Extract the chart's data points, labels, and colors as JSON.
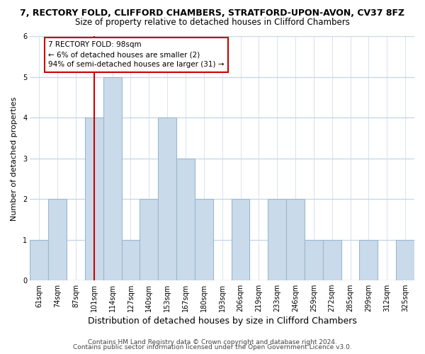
{
  "title_line1": "7, RECTORY FOLD, CLIFFORD CHAMBERS, STRATFORD-UPON-AVON, CV37 8FZ",
  "title_line2": "Size of property relative to detached houses in Clifford Chambers",
  "xlabel": "Distribution of detached houses by size in Clifford Chambers",
  "ylabel": "Number of detached properties",
  "footer_line1": "Contains HM Land Registry data © Crown copyright and database right 2024.",
  "footer_line2": "Contains public sector information licensed under the Open Government Licence v3.0.",
  "bin_labels": [
    "61sqm",
    "74sqm",
    "87sqm",
    "101sqm",
    "114sqm",
    "127sqm",
    "140sqm",
    "153sqm",
    "167sqm",
    "180sqm",
    "193sqm",
    "206sqm",
    "219sqm",
    "233sqm",
    "246sqm",
    "259sqm",
    "272sqm",
    "285sqm",
    "299sqm",
    "312sqm",
    "325sqm"
  ],
  "bar_heights": [
    1,
    2,
    0,
    4,
    5,
    1,
    2,
    4,
    3,
    2,
    0,
    2,
    0,
    2,
    2,
    1,
    1,
    0,
    1,
    0,
    1
  ],
  "bar_color": "#c9daea",
  "bar_edge_color": "#9bb8d0",
  "reference_line_index": 3,
  "reference_line_color": "#cc0000",
  "annotation_text_line1": "7 RECTORY FOLD: 98sqm",
  "annotation_text_line2": "← 6% of detached houses are smaller (2)",
  "annotation_text_line3": "94% of semi-detached houses are larger (31) →",
  "annotation_box_facecolor": "#ffffff",
  "annotation_box_edgecolor": "#cc0000",
  "ylim": [
    0,
    6
  ],
  "yticks": [
    0,
    1,
    2,
    3,
    4,
    5,
    6
  ],
  "background_color": "#ffffff",
  "plot_background_color": "#ffffff",
  "grid_color": "#c8d8e8",
  "title1_fontsize": 9,
  "title2_fontsize": 8.5,
  "xlabel_fontsize": 9,
  "ylabel_fontsize": 8,
  "tick_fontsize": 7,
  "footer_fontsize": 6.5
}
